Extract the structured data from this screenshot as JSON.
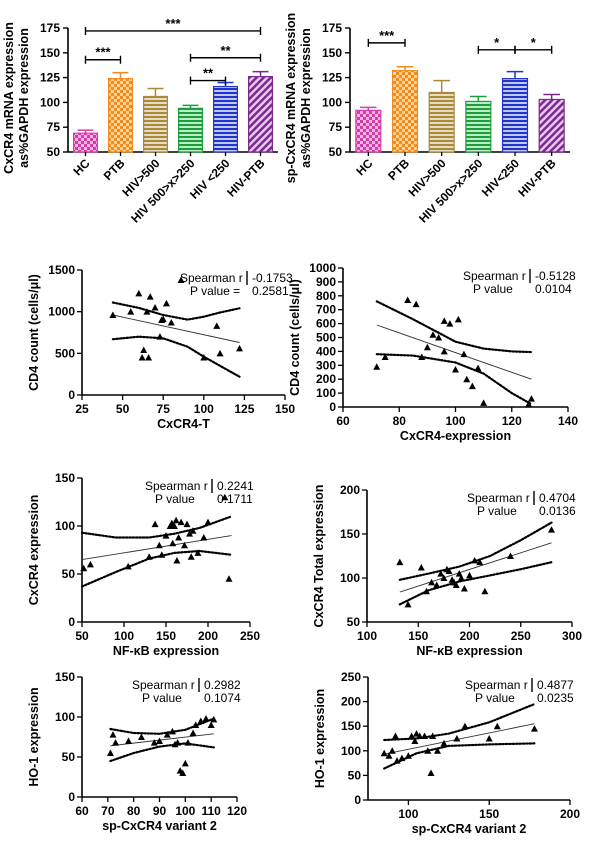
{
  "chart_data": [
    {
      "type": "bar",
      "id": "barA",
      "ylabel_lines": [
        "CxCR4 mRNA expression",
        "as%GAPDH expression"
      ],
      "categories": [
        "HC",
        "PTB",
        "HIV>500",
        "HIV 500>x>250",
        "HIV <250",
        "HIV-PTB"
      ],
      "values": [
        69,
        124,
        106,
        94,
        116,
        126
      ],
      "errors": [
        3,
        6,
        8,
        3,
        4,
        5
      ],
      "colors": [
        "#d63ca8",
        "#f28a1e",
        "#a88a3c",
        "#1e9c3e",
        "#2233c8",
        "#7a2a8c"
      ],
      "patterns": [
        "check",
        "check",
        "hline",
        "hline",
        "hline",
        "diag"
      ],
      "ylim": [
        50,
        175
      ],
      "yticks": [
        50,
        75,
        100,
        125,
        150,
        175
      ],
      "significance": [
        {
          "from": 0,
          "to": 5,
          "label": "***",
          "y": 172
        },
        {
          "from": 0,
          "to": 1,
          "label": "***",
          "y": 143
        },
        {
          "from": 3,
          "to": 5,
          "label": "**",
          "y": 145
        },
        {
          "from": 3,
          "to": 4,
          "label": "**",
          "y": 122
        }
      ]
    },
    {
      "type": "bar",
      "id": "barB",
      "ylabel_lines": [
        "sp-CxCR4 mRNA expression",
        "as%GAPDH expression"
      ],
      "categories": [
        "HC",
        "PTB",
        "HIV>500",
        "HIV 500>x>250",
        "HIV<250",
        "HIV-PTB"
      ],
      "values": [
        92,
        132,
        110,
        101,
        124,
        103
      ],
      "errors": [
        3,
        4,
        12,
        5,
        7,
        5
      ],
      "colors": [
        "#d63ca8",
        "#f28a1e",
        "#a88a3c",
        "#1e9c3e",
        "#2233c8",
        "#7a2a8c"
      ],
      "patterns": [
        "check",
        "check",
        "hline",
        "hline",
        "hline",
        "diag"
      ],
      "ylim": [
        50,
        175
      ],
      "yticks": [
        50,
        75,
        100,
        125,
        150,
        175
      ],
      "significance": [
        {
          "from": 0,
          "to": 1,
          "label": "***",
          "y": 160
        },
        {
          "from": 3,
          "to": 4,
          "label": "*",
          "y": 153
        },
        {
          "from": 4,
          "to": 5,
          "label": "*",
          "y": 153
        }
      ]
    },
    {
      "type": "scatter",
      "id": "sc1",
      "xlabel": "CxCR4-T",
      "ylabel": "CD4 count (cells/μl)",
      "xlim": [
        25,
        150
      ],
      "xticks": [
        25,
        50,
        75,
        100,
        125,
        150
      ],
      "ylim": [
        0,
        1500
      ],
      "yticks": [
        0,
        500,
        1000,
        1500
      ],
      "stats": {
        "r_label": "Spearman r",
        "r_value": "-0.1753",
        "p_label": "P value =",
        "p_value": "0.2581"
      },
      "points": [
        [
          44,
          960
        ],
        [
          55,
          1000
        ],
        [
          60,
          1220
        ],
        [
          62,
          450
        ],
        [
          63,
          540
        ],
        [
          65,
          1000
        ],
        [
          66,
          450
        ],
        [
          67,
          1180
        ],
        [
          70,
          1050
        ],
        [
          73,
          700
        ],
        [
          74,
          900
        ],
        [
          75,
          910
        ],
        [
          77,
          1100
        ],
        [
          80,
          870
        ],
        [
          86,
          1380
        ],
        [
          100,
          450
        ],
        [
          108,
          830
        ],
        [
          110,
          500
        ],
        [
          122,
          560
        ]
      ],
      "fit": [
        [
          44,
          960
        ],
        [
          122,
          630
        ]
      ],
      "band_upper": [
        [
          44,
          1110
        ],
        [
          60,
          1045
        ],
        [
          75,
          960
        ],
        [
          90,
          905
        ],
        [
          100,
          940
        ],
        [
          110,
          990
        ],
        [
          122,
          1040
        ]
      ],
      "band_lower": [
        [
          44,
          670
        ],
        [
          60,
          700
        ],
        [
          75,
          680
        ],
        [
          90,
          580
        ],
        [
          100,
          460
        ],
        [
          110,
          350
        ],
        [
          122,
          220
        ]
      ]
    },
    {
      "type": "scatter",
      "id": "sc2",
      "xlabel": "CxCR4-expression",
      "ylabel": "CD4 count (cells/μl)",
      "xlim": [
        60,
        140
      ],
      "xticks": [
        60,
        80,
        100,
        120,
        140
      ],
      "ylim": [
        0,
        1000
      ],
      "yticks": [
        0,
        100,
        200,
        300,
        400,
        500,
        600,
        700,
        800,
        900,
        1000
      ],
      "stats": {
        "r_label": "Spearman r",
        "r_value": "-0.5128",
        "p_label": "P value",
        "p_value": "0.0104"
      },
      "points": [
        [
          72,
          290
        ],
        [
          75,
          360
        ],
        [
          83,
          770
        ],
        [
          86,
          740
        ],
        [
          88,
          360
        ],
        [
          90,
          430
        ],
        [
          92,
          520
        ],
        [
          94,
          500
        ],
        [
          96,
          400
        ],
        [
          96,
          620
        ],
        [
          98,
          600
        ],
        [
          100,
          270
        ],
        [
          101,
          630
        ],
        [
          103,
          380
        ],
        [
          104,
          200
        ],
        [
          106,
          150
        ],
        [
          108,
          280
        ],
        [
          110,
          30
        ],
        [
          126,
          20
        ],
        [
          127,
          60
        ]
      ],
      "fit": [
        [
          72,
          590
        ],
        [
          127,
          200
        ]
      ],
      "band_upper": [
        [
          72,
          760
        ],
        [
          85,
          630
        ],
        [
          100,
          470
        ],
        [
          110,
          420
        ],
        [
          120,
          400
        ],
        [
          127,
          395
        ]
      ],
      "band_lower": [
        [
          72,
          380
        ],
        [
          85,
          370
        ],
        [
          100,
          320
        ],
        [
          110,
          240
        ],
        [
          120,
          100
        ],
        [
          127,
          20
        ]
      ]
    },
    {
      "type": "scatter",
      "id": "sc3",
      "xlabel": "NF-κB expression",
      "ylabel": "CxCR4 expression",
      "xlim": [
        50,
        250
      ],
      "xticks": [
        50,
        100,
        150,
        200,
        250
      ],
      "ylim": [
        0,
        150
      ],
      "yticks": [
        0,
        50,
        100,
        150
      ],
      "stats": {
        "r_label": "Spearman r",
        "r_value": "0.2241",
        "p_label": "P value",
        "p_value": "0.1711"
      },
      "points": [
        [
          52,
          56
        ],
        [
          60,
          60
        ],
        [
          105,
          58
        ],
        [
          130,
          68
        ],
        [
          137,
          102
        ],
        [
          142,
          80
        ],
        [
          145,
          70
        ],
        [
          150,
          90
        ],
        [
          155,
          100
        ],
        [
          157,
          103
        ],
        [
          158,
          82
        ],
        [
          160,
          100
        ],
        [
          162,
          106
        ],
        [
          163,
          64
        ],
        [
          165,
          88
        ],
        [
          168,
          104
        ],
        [
          172,
          80
        ],
        [
          175,
          102
        ],
        [
          178,
          92
        ],
        [
          180,
          68
        ],
        [
          182,
          95
        ],
        [
          188,
          72
        ],
        [
          195,
          88
        ],
        [
          200,
          104
        ],
        [
          220,
          130
        ],
        [
          225,
          45
        ]
      ],
      "fit": [
        [
          50,
          65
        ],
        [
          228,
          90
        ]
      ],
      "band_upper": [
        [
          50,
          93
        ],
        [
          90,
          88
        ],
        [
          130,
          88
        ],
        [
          160,
          92
        ],
        [
          190,
          98
        ],
        [
          228,
          110
        ]
      ],
      "band_lower": [
        [
          50,
          37
        ],
        [
          90,
          52
        ],
        [
          130,
          66
        ],
        [
          160,
          72
        ],
        [
          190,
          74
        ],
        [
          228,
          70
        ]
      ]
    },
    {
      "type": "scatter",
      "id": "sc4",
      "xlabel": "NF-κB expression",
      "ylabel": "CxCR4 Total expression",
      "xlim": [
        100,
        300
      ],
      "xticks": [
        100,
        150,
        200,
        250,
        300
      ],
      "ylim": [
        50,
        200
      ],
      "yticks": [
        50,
        100,
        150,
        200
      ],
      "stats": {
        "r_label": "Spearman r",
        "r_value": "0.4704",
        "p_label": "P value",
        "p_value": "0.0136"
      },
      "points": [
        [
          132,
          118
        ],
        [
          140,
          70
        ],
        [
          153,
          112
        ],
        [
          158,
          85
        ],
        [
          163,
          95
        ],
        [
          168,
          92
        ],
        [
          172,
          105
        ],
        [
          175,
          100
        ],
        [
          178,
          110
        ],
        [
          180,
          108
        ],
        [
          183,
          98
        ],
        [
          185,
          95
        ],
        [
          187,
          92
        ],
        [
          190,
          105
        ],
        [
          192,
          100
        ],
        [
          195,
          88
        ],
        [
          200,
          103
        ],
        [
          205,
          120
        ],
        [
          210,
          118
        ],
        [
          215,
          85
        ],
        [
          240,
          125
        ],
        [
          280,
          155
        ]
      ],
      "fit": [
        [
          132,
          84
        ],
        [
          280,
          140
        ]
      ],
      "band_upper": [
        [
          132,
          98
        ],
        [
          160,
          105
        ],
        [
          190,
          113
        ],
        [
          220,
          125
        ],
        [
          250,
          143
        ],
        [
          280,
          163
        ]
      ],
      "band_lower": [
        [
          132,
          70
        ],
        [
          160,
          86
        ],
        [
          190,
          96
        ],
        [
          220,
          103
        ],
        [
          250,
          110
        ],
        [
          280,
          118
        ]
      ]
    },
    {
      "type": "scatter",
      "id": "sc5",
      "xlabel": "sp-CxCR4 variant 2",
      "ylabel": "HO-1 expression",
      "xlim": [
        60,
        120
      ],
      "xticks": [
        60,
        70,
        80,
        90,
        100,
        110,
        120
      ],
      "ylim": [
        0,
        150
      ],
      "yticks": [
        0,
        50,
        100,
        150
      ],
      "stats": {
        "r_label": "Spearman r",
        "r_value": "0.2982",
        "p_label": "P value",
        "p_value": "0.1074"
      },
      "points": [
        [
          71,
          55
        ],
        [
          72,
          78
        ],
        [
          73,
          68
        ],
        [
          78,
          70
        ],
        [
          83,
          75
        ],
        [
          88,
          68
        ],
        [
          90,
          70
        ],
        [
          93,
          78
        ],
        [
          95,
          82
        ],
        [
          96,
          66
        ],
        [
          97,
          68
        ],
        [
          98,
          33
        ],
        [
          99,
          30
        ],
        [
          100,
          42
        ],
        [
          101,
          68
        ],
        [
          103,
          80
        ],
        [
          104,
          90
        ],
        [
          106,
          95
        ],
        [
          108,
          98
        ],
        [
          110,
          90
        ],
        [
          111,
          97
        ]
      ],
      "fit": [
        [
          71,
          64
        ],
        [
          111,
          79
        ]
      ],
      "band_upper": [
        [
          71,
          85
        ],
        [
          80,
          80
        ],
        [
          90,
          79
        ],
        [
          100,
          84
        ],
        [
          111,
          98
        ]
      ],
      "band_lower": [
        [
          71,
          45
        ],
        [
          80,
          55
        ],
        [
          90,
          63
        ],
        [
          100,
          67
        ],
        [
          111,
          62
        ]
      ]
    },
    {
      "type": "scatter",
      "id": "sc6",
      "xlabel": "sp-CxCR4 variant 2",
      "ylabel": "HO-1 expression",
      "xlim": [
        75,
        200
      ],
      "xticks": [
        100,
        150,
        200
      ],
      "ylim": [
        0,
        250
      ],
      "yticks": [
        0,
        50,
        100,
        150,
        200,
        250
      ],
      "stats": {
        "r_label": "Spearman r",
        "r_value": "0.4877",
        "p_label": "P value",
        "p_value": "0.0235"
      },
      "points": [
        [
          85,
          95
        ],
        [
          88,
          90
        ],
        [
          90,
          100
        ],
        [
          92,
          130
        ],
        [
          93,
          80
        ],
        [
          96,
          85
        ],
        [
          100,
          90
        ],
        [
          102,
          130
        ],
        [
          104,
          120
        ],
        [
          105,
          135
        ],
        [
          107,
          130
        ],
        [
          110,
          130
        ],
        [
          112,
          100
        ],
        [
          114,
          55
        ],
        [
          115,
          130
        ],
        [
          118,
          100
        ],
        [
          122,
          115
        ],
        [
          130,
          125
        ],
        [
          135,
          150
        ],
        [
          150,
          125
        ],
        [
          155,
          150
        ],
        [
          178,
          145
        ]
      ],
      "fit": [
        [
          85,
          93
        ],
        [
          178,
          155
        ]
      ],
      "band_upper": [
        [
          85,
          122
        ],
        [
          105,
          125
        ],
        [
          125,
          135
        ],
        [
          150,
          158
        ],
        [
          178,
          195
        ]
      ],
      "band_lower": [
        [
          85,
          64
        ],
        [
          105,
          95
        ],
        [
          125,
          110
        ],
        [
          150,
          113
        ],
        [
          178,
          115
        ]
      ]
    }
  ]
}
